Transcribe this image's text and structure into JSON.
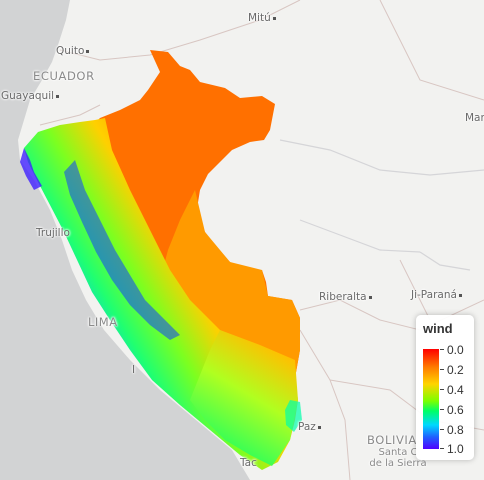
{
  "map": {
    "labels": {
      "mitu": "Mitú",
      "quito": "Quito",
      "ecuador": "ECUADOR",
      "guayaquil": "Guayaquil",
      "manaus_partial": "Mar",
      "trujillo": "Trujillo",
      "lima": "LIMA",
      "ica_partial": "I",
      "riberalta": "Riberalta",
      "ji_parana": "Ji-Paraná",
      "la_paz_partial": "Paz",
      "bolivia": "BOLIVIA",
      "santa_cruz_line1": "Santa C",
      "santa_cruz_line2": "de la Sierra",
      "tacna_partial": "Tac"
    },
    "colors": {
      "ocean": "#d2d3d4",
      "land": "#f2f2f0",
      "borders": "#d8c6c2"
    }
  },
  "legend": {
    "title": "wind",
    "ticks": [
      "0.0",
      "0.2",
      "0.4",
      "0.6",
      "0.8",
      "1.0"
    ],
    "colors": [
      "#ff0000",
      "#ff7a00",
      "#ffd400",
      "#7cff00",
      "#00ff66",
      "#00d8ff",
      "#2060ff",
      "#5000ff"
    ]
  }
}
